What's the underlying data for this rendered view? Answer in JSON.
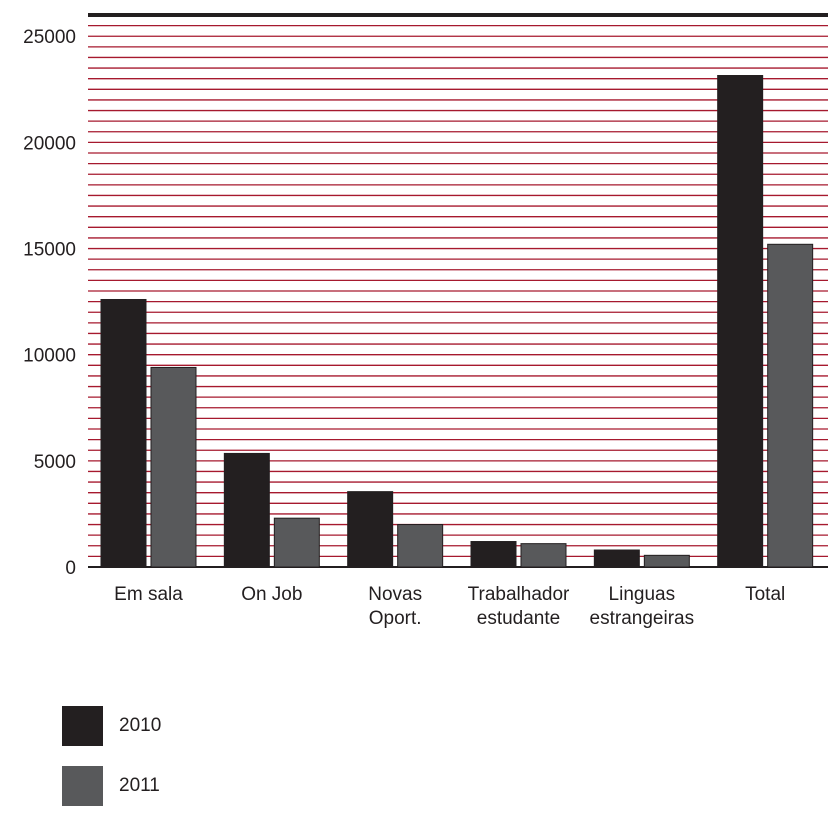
{
  "chart_data": {
    "type": "bar",
    "categories": [
      [
        "Em sala"
      ],
      [
        "On Job"
      ],
      [
        "Novas",
        "Oport."
      ],
      [
        "Trabalhador",
        "estudante"
      ],
      [
        "Linguas",
        "estrangeiras"
      ],
      [
        "Total"
      ]
    ],
    "series": [
      {
        "name": "2010",
        "color": "#231f20",
        "values": [
          12600,
          5350,
          3550,
          1200,
          800,
          23150
        ]
      },
      {
        "name": "2011",
        "color": "#58595b",
        "values": [
          9400,
          2300,
          2000,
          1100,
          550,
          15200
        ]
      }
    ],
    "ylim": [
      0,
      26000
    ],
    "yticks": [
      "0",
      "5000",
      "10000",
      "15000",
      "20000",
      "25000"
    ],
    "ytick_values": [
      0,
      5000,
      10000,
      15000,
      20000,
      25000
    ],
    "grid_color": "#a6192e",
    "grid_step": 500,
    "legend_placement": "bottom-left"
  }
}
